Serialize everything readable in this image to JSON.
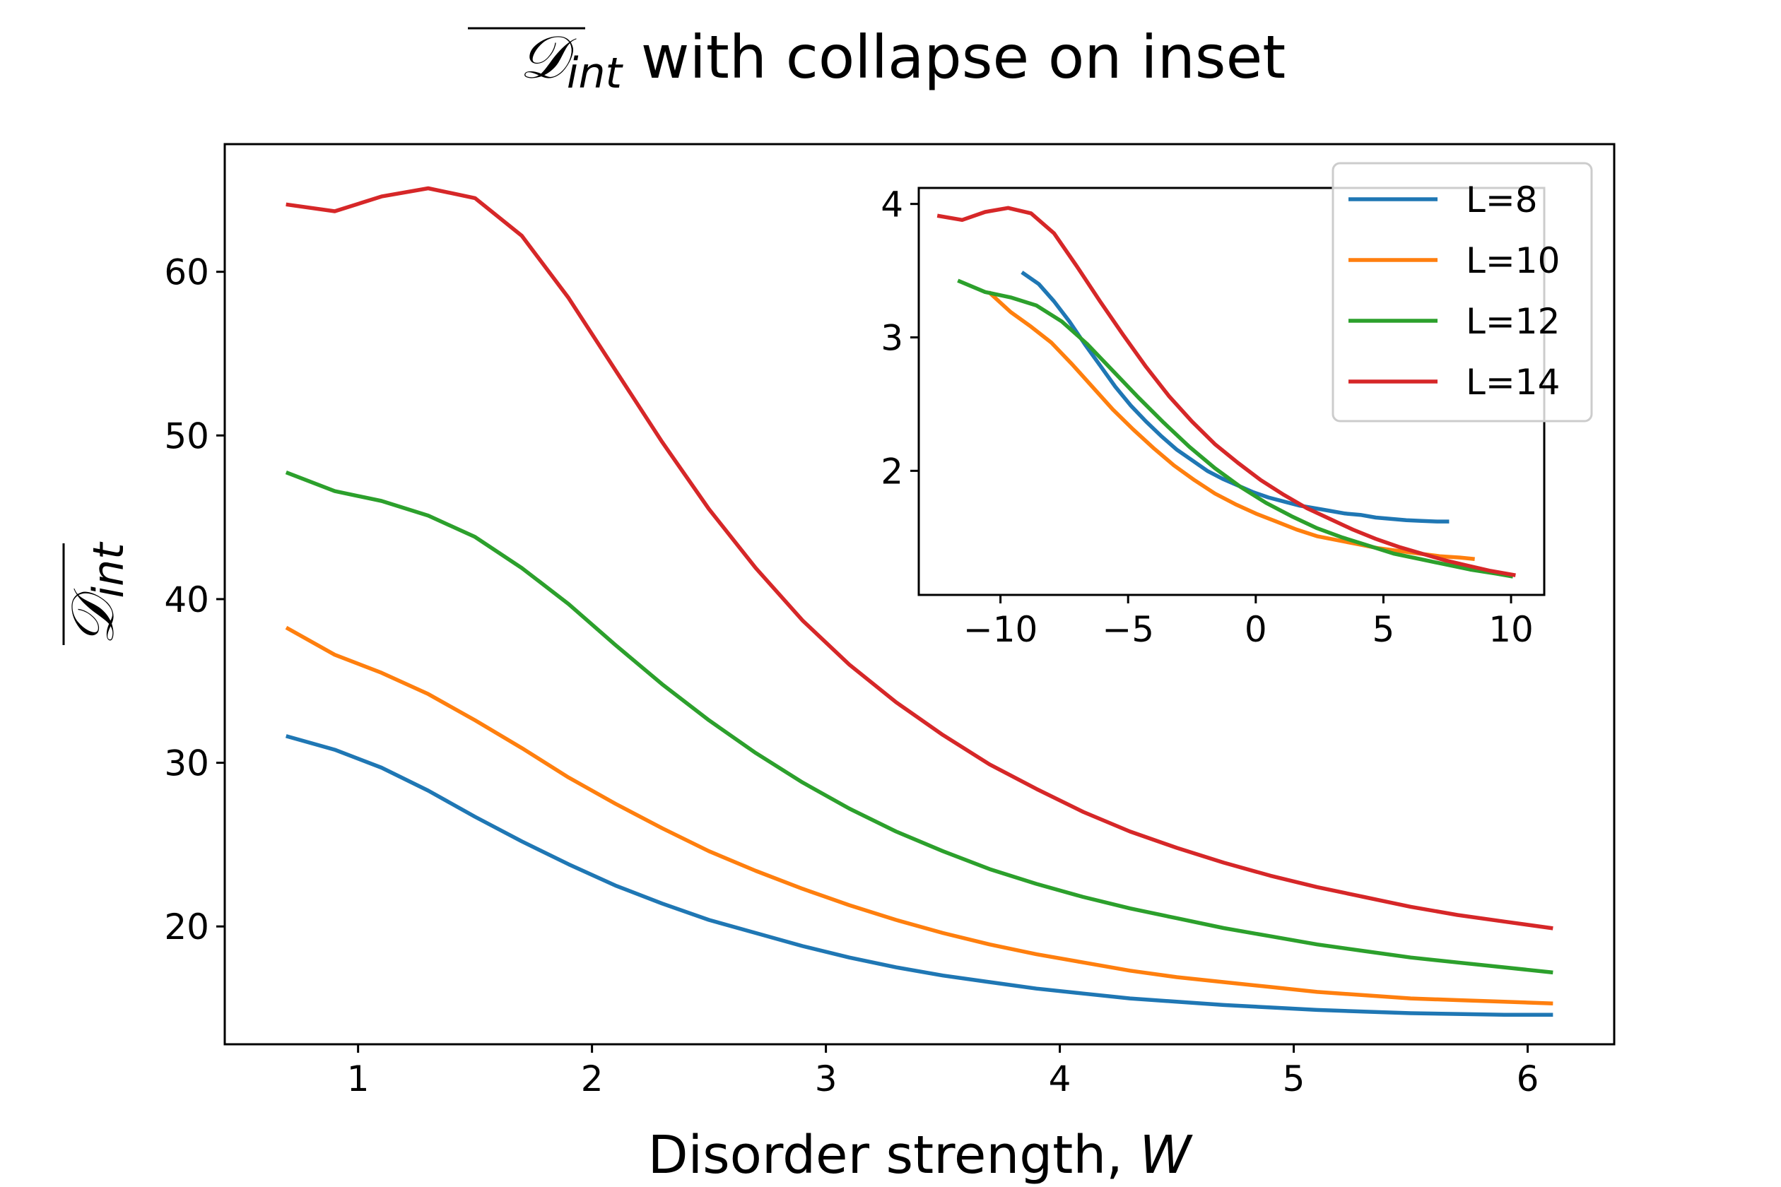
{
  "chart_data": {
    "type": "line",
    "title": {
      "symbol": "𝒟",
      "subscript": "int",
      "text": " with collapse on inset"
    },
    "xlabel": {
      "text": "Disorder strength, ",
      "var": "W"
    },
    "ylabel": {
      "symbol": "𝒟",
      "subscript": "int"
    },
    "xlim": [
      0.43,
      6.37
    ],
    "ylim": [
      12.8,
      67.8
    ],
    "xticks": [
      "1",
      "2",
      "3",
      "4",
      "5",
      "6"
    ],
    "yticks": [
      "20",
      "30",
      "40",
      "50",
      "60"
    ],
    "x": [
      0.7,
      0.9,
      1.1,
      1.3,
      1.5,
      1.7,
      1.9,
      2.1,
      2.3,
      2.5,
      2.7,
      2.9,
      3.1,
      3.3,
      3.5,
      3.7,
      3.9,
      4.1,
      4.3,
      4.5,
      4.7,
      4.9,
      5.1,
      5.3,
      5.5,
      5.7,
      5.9,
      6.1
    ],
    "series": [
      {
        "name": "L=8",
        "color": "#1f77b4",
        "values": [
          31.6,
          30.8,
          29.7,
          28.3,
          26.7,
          25.2,
          23.8,
          22.5,
          21.4,
          20.4,
          19.6,
          18.8,
          18.1,
          17.5,
          17.0,
          16.6,
          16.2,
          15.9,
          15.6,
          15.4,
          15.2,
          15.05,
          14.9,
          14.8,
          14.7,
          14.65,
          14.6,
          14.6
        ]
      },
      {
        "name": "L=10",
        "color": "#ff7f0e",
        "values": [
          38.2,
          36.6,
          35.5,
          34.2,
          32.6,
          30.9,
          29.1,
          27.5,
          26.0,
          24.6,
          23.4,
          22.3,
          21.3,
          20.4,
          19.6,
          18.9,
          18.3,
          17.8,
          17.3,
          16.9,
          16.6,
          16.3,
          16.0,
          15.8,
          15.6,
          15.5,
          15.4,
          15.3
        ]
      },
      {
        "name": "L=12",
        "color": "#2ca02c",
        "values": [
          47.7,
          46.6,
          46.0,
          45.1,
          43.8,
          41.9,
          39.7,
          37.2,
          34.8,
          32.6,
          30.6,
          28.8,
          27.2,
          25.8,
          24.6,
          23.5,
          22.6,
          21.8,
          21.1,
          20.5,
          19.9,
          19.4,
          18.9,
          18.5,
          18.1,
          17.8,
          17.5,
          17.2
        ]
      },
      {
        "name": "L=14",
        "color": "#d62728",
        "values": [
          64.1,
          63.7,
          64.6,
          65.1,
          64.5,
          62.2,
          58.4,
          54.0,
          49.6,
          45.5,
          41.9,
          38.7,
          36.0,
          33.7,
          31.7,
          29.9,
          28.4,
          27.0,
          25.8,
          24.8,
          23.9,
          23.1,
          22.4,
          21.8,
          21.2,
          20.7,
          20.3,
          19.9
        ]
      }
    ],
    "inset": {
      "xlim": [
        -13.2,
        11.3
      ],
      "ylim": [
        1.07,
        4.12
      ],
      "xticks": [
        {
          "value": -10,
          "label": "−10"
        },
        {
          "value": -5,
          "label": "−5"
        },
        {
          "value": 0,
          "label": "0"
        },
        {
          "value": 5,
          "label": "5"
        },
        {
          "value": 10,
          "label": "10"
        }
      ],
      "yticks": [
        {
          "value": 2,
          "label": "2"
        },
        {
          "value": 3,
          "label": "3"
        },
        {
          "value": 4,
          "label": "4"
        }
      ],
      "series": [
        {
          "name": "L=8",
          "x": [
            -9.1,
            -8.5,
            -7.9,
            -7.3,
            -6.7,
            -6.1,
            -5.5,
            -4.9,
            -4.3,
            -3.7,
            -3.1,
            -2.5,
            -1.9,
            -1.3,
            -0.7,
            -0.1,
            0.5,
            1.1,
            1.7,
            2.3,
            2.9,
            3.5,
            4.1,
            4.7,
            5.3,
            5.9,
            6.5,
            7.1,
            7.5
          ],
          "y": [
            3.48,
            3.4,
            3.27,
            3.12,
            2.95,
            2.79,
            2.63,
            2.49,
            2.37,
            2.26,
            2.16,
            2.08,
            2.0,
            1.94,
            1.89,
            1.84,
            1.8,
            1.77,
            1.74,
            1.72,
            1.7,
            1.68,
            1.67,
            1.65,
            1.64,
            1.63,
            1.625,
            1.62,
            1.62
          ]
        },
        {
          "name": "L=10",
          "x": [
            -10.4,
            -9.6,
            -8.8,
            -8.0,
            -7.2,
            -6.4,
            -5.6,
            -4.8,
            -4.0,
            -3.2,
            -2.4,
            -1.6,
            -0.8,
            0.0,
            0.8,
            1.6,
            2.4,
            3.2,
            4.0,
            4.8,
            5.6,
            6.4,
            7.2,
            8.0,
            8.5
          ],
          "y": [
            3.33,
            3.19,
            3.08,
            2.96,
            2.8,
            2.63,
            2.46,
            2.31,
            2.17,
            2.04,
            1.93,
            1.83,
            1.75,
            1.68,
            1.62,
            1.56,
            1.51,
            1.48,
            1.45,
            1.42,
            1.4,
            1.38,
            1.36,
            1.35,
            1.34
          ]
        },
        {
          "name": "L=12",
          "x": [
            -11.6,
            -10.6,
            -9.6,
            -8.6,
            -7.6,
            -6.6,
            -5.6,
            -4.6,
            -3.6,
            -2.6,
            -1.6,
            -0.6,
            0.4,
            1.4,
            2.4,
            3.4,
            4.4,
            5.4,
            6.4,
            7.4,
            8.4,
            9.4,
            10.0
          ],
          "y": [
            3.42,
            3.34,
            3.3,
            3.24,
            3.12,
            2.95,
            2.75,
            2.55,
            2.36,
            2.18,
            2.02,
            1.88,
            1.76,
            1.66,
            1.57,
            1.5,
            1.44,
            1.38,
            1.34,
            1.3,
            1.26,
            1.23,
            1.21
          ]
        },
        {
          "name": "L=14",
          "x": [
            -12.4,
            -11.5,
            -10.6,
            -9.7,
            -8.8,
            -7.9,
            -7.0,
            -6.1,
            -5.2,
            -4.3,
            -3.4,
            -2.5,
            -1.6,
            -0.7,
            0.2,
            1.1,
            2.0,
            2.9,
            3.8,
            4.7,
            5.6,
            6.5,
            7.4,
            8.3,
            9.2,
            10.1
          ],
          "y": [
            3.91,
            3.88,
            3.94,
            3.97,
            3.93,
            3.78,
            3.53,
            3.27,
            3.02,
            2.78,
            2.56,
            2.37,
            2.2,
            2.06,
            1.93,
            1.82,
            1.72,
            1.64,
            1.56,
            1.49,
            1.43,
            1.38,
            1.33,
            1.29,
            1.25,
            1.22
          ]
        }
      ]
    },
    "legend": {
      "placement": "top-right",
      "entries": [
        "L=8",
        "L=10",
        "L=12",
        "L=14"
      ]
    }
  }
}
